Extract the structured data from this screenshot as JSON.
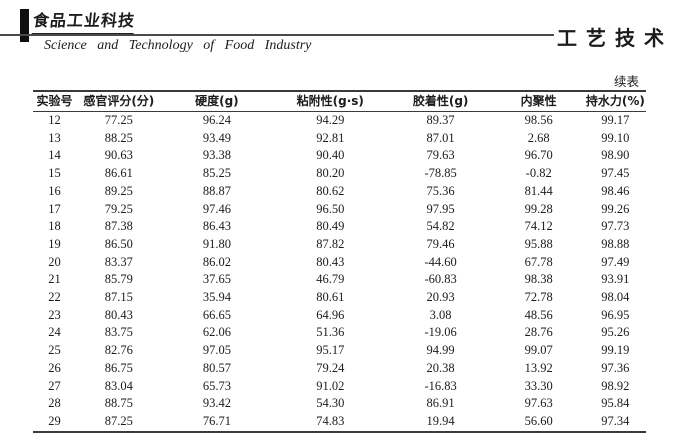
{
  "header": {
    "logo_text": "食品工业科技",
    "journal_subtitle": "Science  and  Technology  of  Food  Industry",
    "section_title": "工艺技术",
    "continued_label": "续表"
  },
  "table": {
    "columns": [
      "实验号",
      "感官评分(分)",
      "硬度(g)",
      "粘附性(g·s)",
      "胶着性(g)",
      "内聚性",
      "持水力(%)"
    ],
    "rows": [
      [
        "12",
        "77.25",
        "96.24",
        "94.29",
        "89.37",
        "98.56",
        "99.17"
      ],
      [
        "13",
        "88.25",
        "93.49",
        "92.81",
        "87.01",
        "2.68",
        "99.10"
      ],
      [
        "14",
        "90.63",
        "93.38",
        "90.40",
        "79.63",
        "96.70",
        "98.90"
      ],
      [
        "15",
        "86.61",
        "85.25",
        "80.20",
        "-78.85",
        "-0.82",
        "97.45"
      ],
      [
        "16",
        "89.25",
        "88.87",
        "80.62",
        "75.36",
        "81.44",
        "98.46"
      ],
      [
        "17",
        "79.25",
        "97.46",
        "96.50",
        "97.95",
        "99.28",
        "99.26"
      ],
      [
        "18",
        "87.38",
        "86.43",
        "80.49",
        "54.82",
        "74.12",
        "97.73"
      ],
      [
        "19",
        "86.50",
        "91.80",
        "87.82",
        "79.46",
        "95.88",
        "98.88"
      ],
      [
        "20",
        "83.37",
        "86.02",
        "80.43",
        "-44.60",
        "67.78",
        "97.49"
      ],
      [
        "21",
        "85.79",
        "37.65",
        "46.79",
        "-60.83",
        "98.38",
        "93.91"
      ],
      [
        "22",
        "87.15",
        "35.94",
        "80.61",
        "20.93",
        "72.78",
        "98.04"
      ],
      [
        "23",
        "80.43",
        "66.65",
        "64.96",
        "3.08",
        "48.56",
        "96.95"
      ],
      [
        "24",
        "83.75",
        "62.06",
        "51.36",
        "-19.06",
        "28.76",
        "95.26"
      ],
      [
        "25",
        "82.76",
        "97.05",
        "95.17",
        "94.99",
        "99.07",
        "99.19"
      ],
      [
        "26",
        "86.75",
        "80.57",
        "79.24",
        "20.38",
        "13.92",
        "97.36"
      ],
      [
        "27",
        "83.04",
        "65.73",
        "91.02",
        "-16.83",
        "33.30",
        "98.92"
      ],
      [
        "28",
        "88.75",
        "93.42",
        "54.30",
        "86.91",
        "97.63",
        "95.84"
      ],
      [
        "29",
        "87.25",
        "76.71",
        "74.83",
        "19.94",
        "56.60",
        "97.34"
      ]
    ]
  },
  "colors": {
    "ink": "#1c1c1c",
    "rule": "#3a3a3a",
    "background": "#ffffff"
  }
}
